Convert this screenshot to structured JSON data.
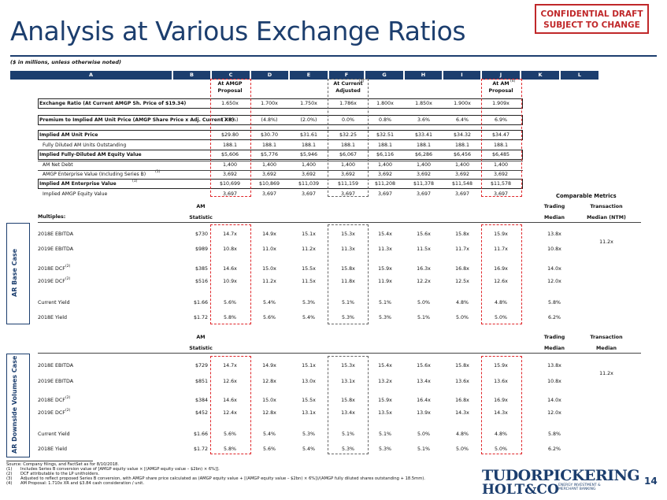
{
  "title": "Analysis at Various Exchange Ratios",
  "confidential": [
    "CONFIDENTIAL DRAFT",
    "SUBJECT TO CHANGE"
  ],
  "subtitle": "($ in millions, unless otherwise noted)",
  "col_letters": [
    "A",
    "B",
    "C",
    "D",
    "E",
    "F",
    "G",
    "H",
    "I",
    "J",
    "K",
    "L"
  ],
  "col_labels": {
    "C": [
      "At AMGP",
      "Proposal"
    ],
    "F": [
      "At Current",
      "Adjusted"
    ],
    "F_sup": "(3)",
    "J": [
      "At AM",
      "Proposal"
    ],
    "J_sup": "(4)"
  },
  "top_rows": [
    {
      "label": "Exchange Ratio (At Current AMGP Sh. Price of $19.34)",
      "boxed": true,
      "values": [
        "1.650x",
        "1.700x",
        "1.750x",
        "1.786x",
        "1.800x",
        "1.850x",
        "1.900x",
        "1.909x"
      ]
    },
    {
      "label": "Premium to Implied AM Unit Price (AMGP Share Price x Adj. Current XR)",
      "boxed": true,
      "values": [
        "(7.6%)",
        "(4.8%)",
        "(2.0%)",
        "0.0%",
        "0.8%",
        "3.6%",
        "6.4%",
        "6.9%"
      ]
    },
    {
      "label": "Implied AM Unit Price",
      "boxed": true,
      "values": [
        "$29.80",
        "$30.70",
        "$31.61",
        "$32.25",
        "$32.51",
        "$33.41",
        "$34.32",
        "$34.47"
      ]
    },
    {
      "label": "Fully Diluted AM Units Outstanding",
      "indent": true,
      "values": [
        "188.1",
        "188.1",
        "188.1",
        "188.1",
        "188.1",
        "188.1",
        "188.1",
        "188.1"
      ]
    },
    {
      "label": "Implied Fully-Diluted AM Equity Value",
      "boxed": true,
      "values": [
        "$5,606",
        "$5,776",
        "$5,946",
        "$6,067",
        "$6,116",
        "$6,286",
        "$6,456",
        "$6,485"
      ]
    },
    {
      "label": "AM Net Debt",
      "indent": true,
      "values": [
        "1,400",
        "1,400",
        "1,400",
        "1,400",
        "1,400",
        "1,400",
        "1,400",
        "1,400"
      ]
    },
    {
      "label": "AMGP Enterprise Value (Including Series B)",
      "sup": "(1)",
      "indent": true,
      "values": [
        "3,692",
        "3,692",
        "3,692",
        "3,692",
        "3,692",
        "3,692",
        "3,692",
        "3,692"
      ]
    },
    {
      "label": "Implied AM Enterprise Value",
      "sup": "(1)",
      "boxed": true,
      "values": [
        "$10,699",
        "$10,869",
        "$11,039",
        "$11,159",
        "$11,208",
        "$11,378",
        "$11,548",
        "$11,578"
      ]
    },
    {
      "label": "Implied AMGP Equity Value",
      "indent": true,
      "values": [
        "3,697",
        "3,697",
        "3,697",
        "3,697",
        "3,697",
        "3,697",
        "3,697",
        "3,697"
      ]
    }
  ],
  "comparable_metrics": "Comparable Metrics",
  "multiples_label": "Multiples:",
  "base_case": {
    "side_label": "AR Base Case",
    "stat_head": [
      "AM",
      "Statistic"
    ],
    "trading_head": [
      "Trading",
      "Median"
    ],
    "txn_head": [
      "Transaction",
      "Median (NTM)"
    ],
    "rows": [
      {
        "label": "2018E EBITDA",
        "stat": "$730",
        "values": [
          "14.7x",
          "14.9x",
          "15.1x",
          "15.3x",
          "15.4x",
          "15.6x",
          "15.8x",
          "15.9x"
        ],
        "trading": "13.8x"
      },
      {
        "label": "2019E EBITDA",
        "stat": "$989",
        "values": [
          "10.8x",
          "11.0x",
          "11.2x",
          "11.3x",
          "11.3x",
          "11.5x",
          "11.7x",
          "11.7x"
        ],
        "trading": "10.8x"
      },
      {
        "label": "2018E DCF",
        "sup": "(2)",
        "stat": "$385",
        "values": [
          "14.6x",
          "15.0x",
          "15.5x",
          "15.8x",
          "15.9x",
          "16.3x",
          "16.8x",
          "16.9x"
        ],
        "trading": "14.0x"
      },
      {
        "label": "2019E DCF",
        "sup": "(2)",
        "stat": "$516",
        "values": [
          "10.9x",
          "11.2x",
          "11.5x",
          "11.8x",
          "11.9x",
          "12.2x",
          "12.5x",
          "12.6x"
        ],
        "trading": "12.0x"
      },
      {
        "label": "Current Yield",
        "stat": "$1.66",
        "values": [
          "5.6%",
          "5.4%",
          "5.3%",
          "5.1%",
          "5.1%",
          "5.0%",
          "4.8%",
          "4.8%"
        ],
        "trading": "5.8%"
      },
      {
        "label": "2018E Yield",
        "stat": "$1.72",
        "values": [
          "5.8%",
          "5.6%",
          "5.4%",
          "5.3%",
          "5.3%",
          "5.1%",
          "5.0%",
          "5.0%"
        ],
        "trading": "6.2%"
      }
    ],
    "txn_value": "11.2x"
  },
  "downside_case": {
    "side_label": "AR Downside Volumes Case",
    "stat_head": [
      "AM",
      "Statistic"
    ],
    "trading_head": [
      "Trading",
      "Median"
    ],
    "txn_head": [
      "Transaction",
      "Median"
    ],
    "rows": [
      {
        "label": "2018E EBITDA",
        "stat": "$729",
        "values": [
          "14.7x",
          "14.9x",
          "15.1x",
          "15.3x",
          "15.4x",
          "15.6x",
          "15.8x",
          "15.9x"
        ],
        "trading": "13.8x"
      },
      {
        "label": "2019E EBITDA",
        "stat": "$851",
        "values": [
          "12.6x",
          "12.8x",
          "13.0x",
          "13.1x",
          "13.2x",
          "13.4x",
          "13.6x",
          "13.6x"
        ],
        "trading": "10.8x"
      },
      {
        "label": "2018E DCF",
        "sup": "(2)",
        "stat": "$384",
        "values": [
          "14.6x",
          "15.0x",
          "15.5x",
          "15.8x",
          "15.9x",
          "16.4x",
          "16.8x",
          "16.9x"
        ],
        "trading": "14.0x"
      },
      {
        "label": "2019E DCF",
        "sup": "(2)",
        "stat": "$452",
        "values": [
          "12.4x",
          "12.8x",
          "13.1x",
          "13.4x",
          "13.5x",
          "13.9x",
          "14.3x",
          "14.3x"
        ],
        "trading": "12.0x"
      },
      {
        "label": "Current Yield",
        "stat": "$1.66",
        "values": [
          "5.6%",
          "5.4%",
          "5.3%",
          "5.1%",
          "5.1%",
          "5.0%",
          "4.8%",
          "4.8%"
        ],
        "trading": "5.8%"
      },
      {
        "label": "2018E Yield",
        "stat": "$1.72",
        "values": [
          "5.8%",
          "5.6%",
          "5.4%",
          "5.3%",
          "5.3%",
          "5.1%",
          "5.0%",
          "5.0%"
        ],
        "trading": "6.2%"
      }
    ],
    "txn_value": "11.2x"
  },
  "footnotes": [
    [
      "",
      "Source: Company filings, and FactSet as for 8/10/2018."
    ],
    [
      "(1)",
      "Includes Series B conversion value of [AMGP equity value × [(AMGP equity value – $2bn) × 6%]]."
    ],
    [
      "(2)",
      "DCF attributable to the LP unitholders."
    ],
    [
      "(3)",
      "Adjusted to reflect proposed Series B conversion, with AMGP share price calculated as (AMGP equity value + [(AMGP equity value – $2bn) × 6%])/(AMGP fully diluted shares outstanding + 18.5mm)."
    ],
    [
      "(4)",
      "AM Proposal: 1.710x XR and $3.84 cash consideration / unit."
    ]
  ],
  "logo": {
    "line1": "TUDORPICKERING",
    "line2": "HOLT&CO",
    "tagline": [
      "ENERGY INVESTMENT &",
      "MERCHANT BANKING"
    ]
  },
  "page_number": "14"
}
